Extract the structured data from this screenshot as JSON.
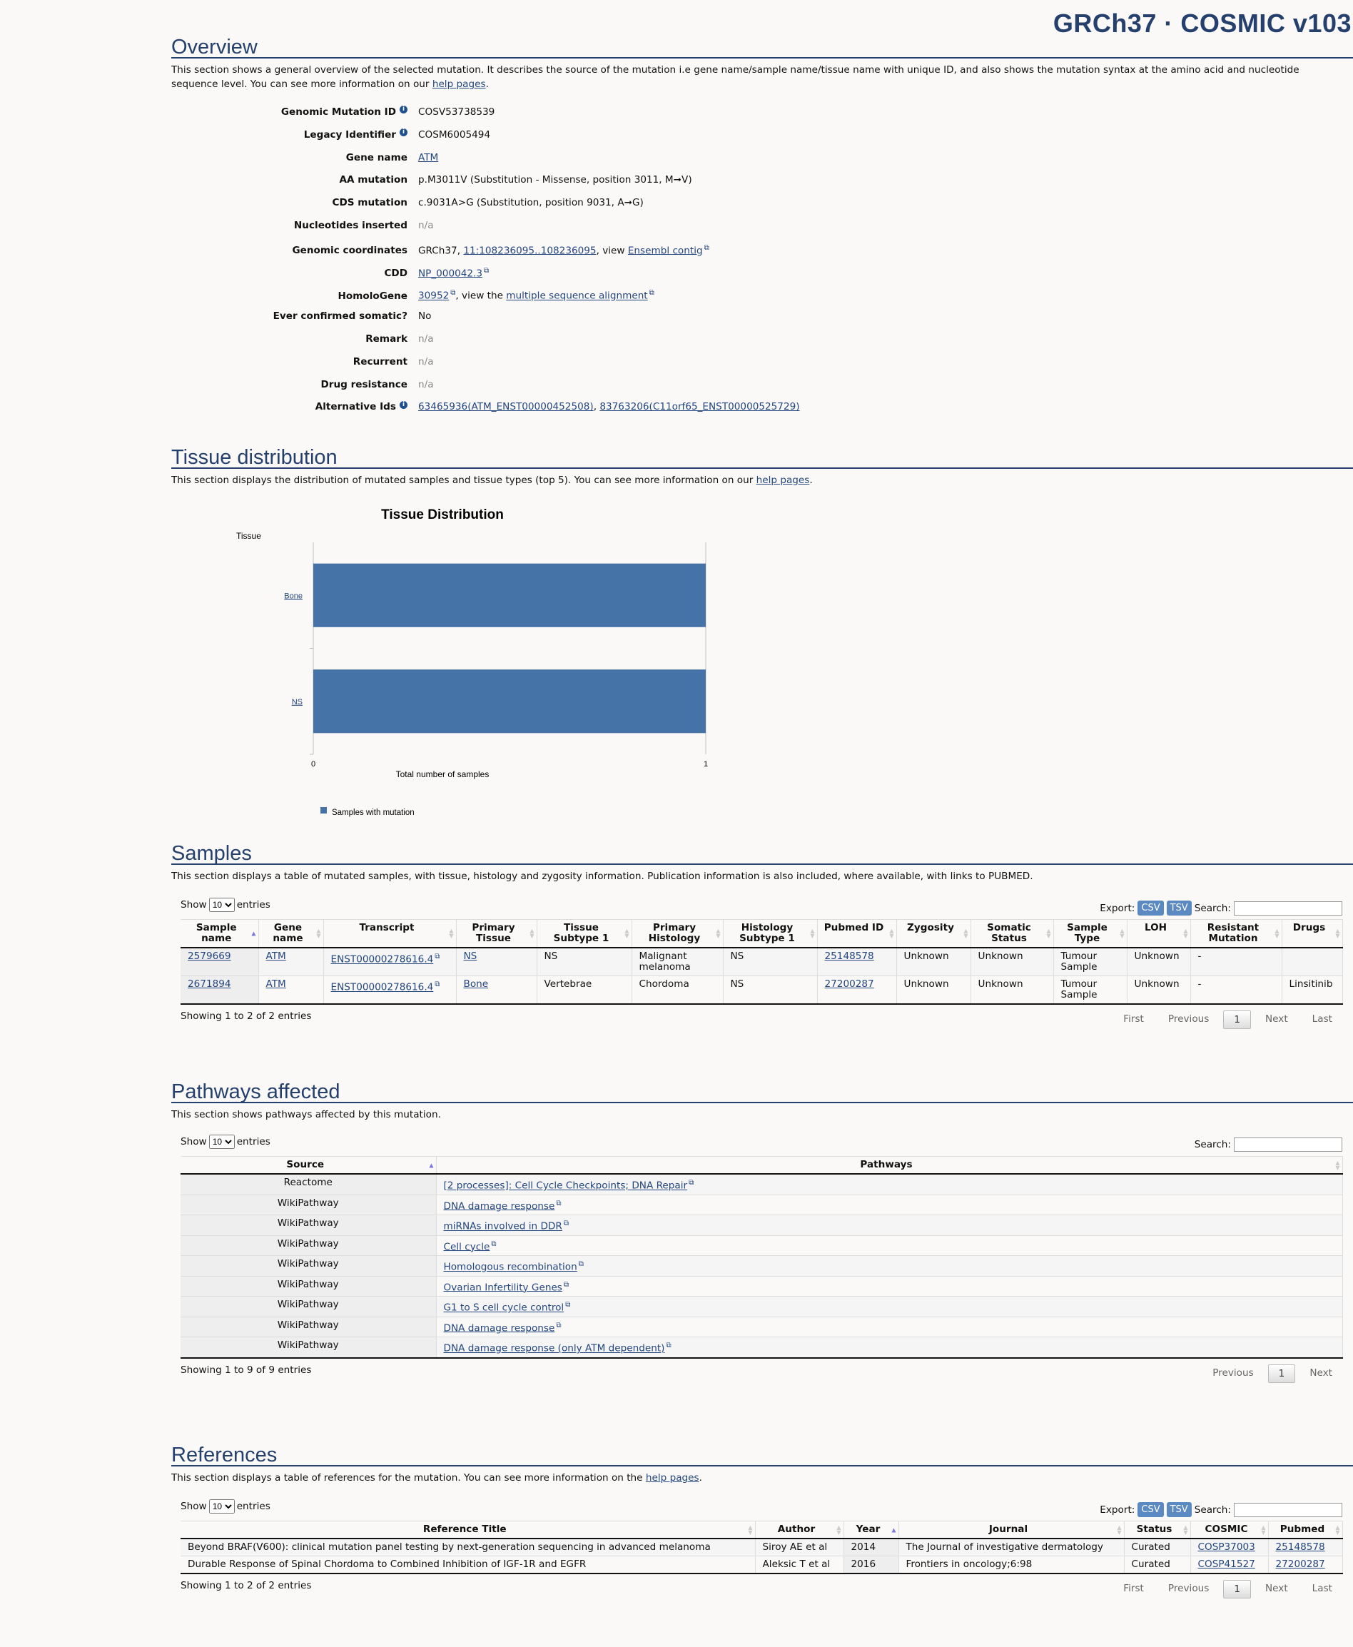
{
  "header": {
    "title": "GRCh37 · COSMIC v103"
  },
  "overview": {
    "heading": "Overview",
    "desc_pre": "This section shows a general overview of the selected mutation. It describes the source of the mutation i.e gene name/sample name/tissue name with unique ID, and also shows the mutation syntax at the amino acid and nucleotide sequence level. You can see more information on our ",
    "desc_link": "help pages",
    "desc_post": ".",
    "fields": [
      {
        "label": "Genomic Mutation ID",
        "info": true,
        "parts": [
          {
            "t": "COSV53738539"
          }
        ]
      },
      {
        "label": "Legacy Identifier",
        "info": true,
        "parts": [
          {
            "t": "COSM6005494"
          }
        ]
      },
      {
        "label": "Gene name",
        "parts": [
          {
            "t": "ATM",
            "link": true
          }
        ]
      },
      {
        "label": "AA mutation",
        "parts": [
          {
            "t": "p.M3011V (Substitution - Missense, position 3011, M➞V)"
          }
        ]
      },
      {
        "label": "CDS mutation",
        "parts": [
          {
            "t": "c.9031A>G (Substitution, position 9031, A➞G)"
          }
        ]
      },
      {
        "label": "Nucleotides inserted",
        "parts": [
          {
            "t": "n/a",
            "na": true
          }
        ]
      },
      {
        "label": "Genomic coordinates",
        "parts": [
          {
            "t": "GRCh37, "
          },
          {
            "t": "11:108236095..108236095",
            "link": true
          },
          {
            "t": ", view "
          },
          {
            "t": "Ensembl contig",
            "link": true,
            "ext": true
          }
        ]
      },
      {
        "label": "CDD",
        "parts": [
          {
            "t": "NP_000042.3",
            "link": true,
            "ext": true
          }
        ]
      },
      {
        "label": "HomoloGene",
        "parts": [
          {
            "t": "30952",
            "link": true,
            "ext": true
          },
          {
            "t": ", view the "
          },
          {
            "t": "multiple sequence alignment",
            "link": true,
            "ext": true
          }
        ]
      },
      {
        "label": "Ever confirmed somatic?",
        "parts": [
          {
            "t": "No"
          }
        ]
      },
      {
        "label": "Remark",
        "parts": [
          {
            "t": "n/a",
            "na": true
          }
        ]
      },
      {
        "label": "Recurrent",
        "parts": [
          {
            "t": "n/a",
            "na": true
          }
        ]
      },
      {
        "label": "Drug resistance",
        "parts": [
          {
            "t": "n/a",
            "na": true
          }
        ]
      },
      {
        "label": "Alternative Ids",
        "info": true,
        "parts": [
          {
            "t": "63465936(ATM_ENST00000452508)",
            "link": true
          },
          {
            "t": ", "
          },
          {
            "t": "83763206(C11orf65_ENST00000525729)",
            "link": true
          }
        ]
      }
    ]
  },
  "tissue": {
    "heading": "Tissue distribution",
    "desc_pre": "This section displays the distribution of mutated samples and tissue types (top 5). You can see more information on our ",
    "desc_link": "help pages",
    "desc_post": "."
  },
  "chart_data": {
    "type": "bar",
    "orientation": "horizontal",
    "title": "Tissue Distribution",
    "ylabel": "Tissue",
    "xlabel": "Total number of samples",
    "categories": [
      "Bone",
      "NS"
    ],
    "series": [
      {
        "name": "Samples with mutation",
        "values": [
          1,
          1
        ],
        "color": "#4673a7"
      }
    ],
    "xlim": [
      0,
      1
    ],
    "xticks": [
      "0",
      "1"
    ],
    "legend": "bottom-left",
    "grid": true
  },
  "samples": {
    "heading": "Samples",
    "desc": "This section displays a table of mutated samples, with tissue, histology and zygosity information. Publication information is also included, where available, with links to PUBMED.",
    "show": "Show",
    "entries": "entries",
    "length": "10",
    "export": "Export:",
    "csv": "CSV",
    "tsv": "TSV",
    "search": "Search:",
    "columns": [
      "Sample name",
      "Gene name",
      "Transcript",
      "Primary Tissue",
      "Tissue Subtype 1",
      "Primary Histology",
      "Histology Subtype 1",
      "Pubmed ID",
      "Zygosity",
      "Somatic Status",
      "Sample Type",
      "LOH",
      "Resistant Mutation",
      "Drugs"
    ],
    "rows": [
      [
        "2579669",
        "ATM",
        "ENST00000278616.4",
        "NS",
        "NS",
        "Malignant melanoma",
        "NS",
        "25148578",
        "Unknown",
        "Unknown",
        "Tumour Sample",
        "Unknown",
        "-",
        ""
      ],
      [
        "2671894",
        "ATM",
        "ENST00000278616.4",
        "Bone",
        "Vertebrae",
        "Chordoma",
        "NS",
        "27200287",
        "Unknown",
        "Unknown",
        "Tumour Sample",
        "Unknown",
        "-",
        "Linsitinib"
      ]
    ],
    "info": "Showing 1 to 2 of 2 entries",
    "pager": [
      "First",
      "Previous",
      "1",
      "Next",
      "Last"
    ]
  },
  "pathways": {
    "heading": "Pathways affected",
    "desc": "This section shows pathways affected by this mutation.",
    "show": "Show",
    "entries": "entries",
    "length": "10",
    "search": "Search:",
    "columns": [
      "Source",
      "Pathways"
    ],
    "rows": [
      [
        "Reactome",
        "[2 processes]: Cell Cycle Checkpoints; DNA Repair"
      ],
      [
        "WikiPathway",
        "DNA damage response"
      ],
      [
        "WikiPathway",
        "miRNAs involved in DDR"
      ],
      [
        "WikiPathway",
        "Cell cycle"
      ],
      [
        "WikiPathway",
        "Homologous recombination"
      ],
      [
        "WikiPathway",
        "Ovarian Infertility Genes"
      ],
      [
        "WikiPathway",
        "G1 to S cell cycle control"
      ],
      [
        "WikiPathway",
        "DNA damage response"
      ],
      [
        "WikiPathway",
        "DNA damage response (only ATM dependent)"
      ]
    ],
    "info": "Showing 1 to 9 of 9 entries",
    "pager": [
      "Previous",
      "1",
      "Next"
    ]
  },
  "references": {
    "heading": "References",
    "desc_pre": "This section displays a table of references for the mutation. You can see more information on the ",
    "desc_link": "help pages",
    "desc_post": ".",
    "show": "Show",
    "entries": "entries",
    "length": "10",
    "export": "Export:",
    "csv": "CSV",
    "tsv": "TSV",
    "search": "Search:",
    "columns": [
      "Reference Title",
      "Author",
      "Year",
      "Journal",
      "Status",
      "COSMIC",
      "Pubmed"
    ],
    "rows": [
      [
        "Beyond BRAF(V600): clinical mutation panel testing by next-generation sequencing in advanced melanoma",
        "Siroy AE et al",
        "2014",
        "The Journal of investigative dermatology",
        "Curated",
        "COSP37003",
        "25148578"
      ],
      [
        "Durable Response of Spinal Chordoma to Combined Inhibition of IGF-1R and EGFR",
        "Aleksic T et al",
        "2016",
        "Frontiers in oncology;6:98",
        "Curated",
        "COSP41527",
        "27200287"
      ]
    ],
    "info": "Showing 1 to 2 of 2 entries",
    "pager": [
      "First",
      "Previous",
      "1",
      "Next",
      "Last"
    ]
  }
}
